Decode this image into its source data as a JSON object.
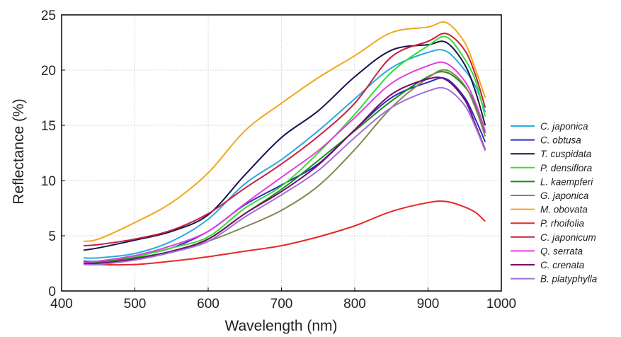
{
  "chart_data": {
    "type": "line",
    "title": "",
    "xlabel": "Wavelength (nm)",
    "ylabel": "Reflectance (%)",
    "xlim": [
      400,
      1000
    ],
    "ylim": [
      0,
      25
    ],
    "xticks": [
      400,
      500,
      600,
      700,
      800,
      900,
      1000
    ],
    "yticks": [
      0,
      5,
      10,
      15,
      20,
      25
    ],
    "grid": true,
    "legend_position": "right",
    "x": [
      430,
      450,
      500,
      550,
      600,
      650,
      700,
      750,
      800,
      850,
      900,
      925,
      950,
      965,
      978
    ],
    "series": [
      {
        "name": "C. japonica",
        "color": "#29abe2",
        "values": [
          3.0,
          3.0,
          3.4,
          4.5,
          6.5,
          9.7,
          11.9,
          14.5,
          17.4,
          20.2,
          21.6,
          21.7,
          20.0,
          18.5,
          16.2
        ]
      },
      {
        "name": "C. obtusa",
        "color": "#2b2bc8",
        "values": [
          2.7,
          2.7,
          3.2,
          3.9,
          5.4,
          7.8,
          9.6,
          11.5,
          14.6,
          17.5,
          18.9,
          19.2,
          17.5,
          15.5,
          13.5
        ]
      },
      {
        "name": "T. cuspidata",
        "color": "#141450",
        "values": [
          3.7,
          3.9,
          4.6,
          5.4,
          6.9,
          10.5,
          13.9,
          16.3,
          19.4,
          21.8,
          22.3,
          22.5,
          20.5,
          18.0,
          15.0
        ]
      },
      {
        "name": "P. densiflora",
        "color": "#33dd33",
        "values": [
          2.6,
          2.6,
          3.1,
          3.9,
          4.9,
          7.5,
          9.5,
          12.5,
          16.0,
          19.8,
          22.2,
          23.0,
          21.0,
          19.0,
          15.8
        ]
      },
      {
        "name": "L. kaempferi",
        "color": "#1a8a1a",
        "values": [
          2.6,
          2.6,
          3.0,
          3.6,
          4.7,
          7.0,
          9.2,
          11.8,
          14.5,
          17.2,
          19.4,
          19.8,
          18.5,
          16.8,
          14.3
        ]
      },
      {
        "name": "G. japonica",
        "color": "#868650",
        "values": [
          2.4,
          2.5,
          2.9,
          3.5,
          4.5,
          5.8,
          7.3,
          9.5,
          12.8,
          16.6,
          19.3,
          20.0,
          18.6,
          16.5,
          14.0
        ]
      },
      {
        "name": "M. obovata",
        "color": "#f0a81c",
        "values": [
          4.5,
          4.7,
          6.2,
          8.0,
          10.7,
          14.5,
          17.0,
          19.3,
          21.3,
          23.4,
          23.9,
          24.3,
          22.5,
          20.0,
          17.5
        ]
      },
      {
        "name": "P. rhoifolia",
        "color": "#e82626",
        "values": [
          2.6,
          2.4,
          2.4,
          2.7,
          3.1,
          3.6,
          4.1,
          4.9,
          5.9,
          7.2,
          8.0,
          8.1,
          7.6,
          7.1,
          6.3
        ]
      },
      {
        "name": "C. japonicum",
        "color": "#c81e3c",
        "values": [
          4.1,
          4.2,
          4.7,
          5.5,
          7.0,
          9.3,
          11.5,
          14.0,
          17.0,
          21.2,
          22.6,
          23.3,
          21.8,
          19.5,
          16.6
        ]
      },
      {
        "name": "Q. serrata",
        "color": "#e040e0",
        "values": [
          2.6,
          2.7,
          3.2,
          4.1,
          5.4,
          7.9,
          10.3,
          12.7,
          15.7,
          18.8,
          20.4,
          20.6,
          19.0,
          17.0,
          14.5
        ]
      },
      {
        "name": "C. crenata",
        "color": "#7a0a6a",
        "values": [
          2.5,
          2.5,
          2.9,
          3.6,
          4.7,
          7.0,
          9.0,
          11.4,
          14.6,
          17.8,
          19.2,
          19.1,
          17.3,
          15.0,
          12.8
        ]
      },
      {
        "name": "B. platyphylla",
        "color": "#a070d8",
        "values": [
          2.4,
          2.4,
          2.8,
          3.5,
          4.5,
          6.7,
          8.7,
          10.9,
          13.9,
          16.6,
          18.1,
          18.3,
          16.8,
          14.8,
          12.7
        ]
      }
    ]
  }
}
